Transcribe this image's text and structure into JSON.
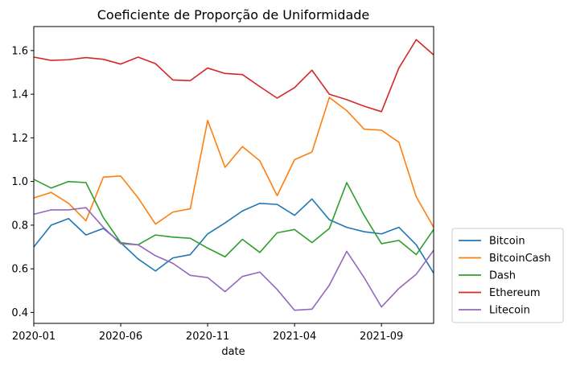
{
  "chart_data": {
    "type": "line",
    "title": "Coeficiente de Proporção de Uniformidade",
    "xlabel": "date",
    "ylabel": "",
    "x": [
      "2020-01",
      "2020-02",
      "2020-03",
      "2020-04",
      "2020-05",
      "2020-06",
      "2020-07",
      "2020-08",
      "2020-09",
      "2020-10",
      "2020-11",
      "2020-12",
      "2021-01",
      "2021-02",
      "2021-03",
      "2021-04",
      "2021-05",
      "2021-06",
      "2021-07",
      "2021-08",
      "2021-09",
      "2021-10",
      "2021-11",
      "2021-12"
    ],
    "x_ticks": [
      "2020-01",
      "2020-06",
      "2020-11",
      "2021-04",
      "2021-09"
    ],
    "y_ticks": [
      0.4,
      0.6,
      0.8,
      1.0,
      1.2,
      1.4,
      1.6
    ],
    "y_tick_labels": [
      "0.4",
      "0.6",
      "0.8",
      "1.0",
      "1.2",
      "1.4",
      "1.6"
    ],
    "ylim": [
      0.35,
      1.71
    ],
    "grid": false,
    "legend_position": "outside-bottom-right",
    "series": [
      {
        "name": "Bitcoin",
        "color": "#1f77b4",
        "values": [
          0.7,
          0.8,
          0.83,
          0.755,
          0.785,
          0.72,
          0.645,
          0.59,
          0.65,
          0.665,
          0.76,
          0.81,
          0.865,
          0.9,
          0.895,
          0.845,
          0.92,
          0.825,
          0.79,
          0.77,
          0.76,
          0.79,
          0.71,
          0.58
        ]
      },
      {
        "name": "BitcoinCash",
        "color": "#ff7f0e",
        "values": [
          0.925,
          0.95,
          0.9,
          0.82,
          1.02,
          1.025,
          0.925,
          0.805,
          0.86,
          0.875,
          1.28,
          1.065,
          1.16,
          1.095,
          0.935,
          1.1,
          1.135,
          1.385,
          1.325,
          1.24,
          1.235,
          1.18,
          0.93,
          0.79
        ]
      },
      {
        "name": "Dash",
        "color": "#2ca02c",
        "values": [
          1.01,
          0.97,
          1.0,
          0.995,
          0.835,
          0.72,
          0.71,
          0.755,
          0.745,
          0.74,
          0.695,
          0.655,
          0.735,
          0.675,
          0.765,
          0.78,
          0.72,
          0.785,
          0.995,
          0.845,
          0.715,
          0.73,
          0.665,
          0.78
        ]
      },
      {
        "name": "Ethereum",
        "color": "#d62728",
        "values": [
          1.57,
          1.555,
          1.558,
          1.568,
          1.56,
          1.538,
          1.57,
          1.54,
          1.465,
          1.462,
          1.52,
          1.495,
          1.49,
          1.435,
          1.382,
          1.43,
          1.51,
          1.4,
          1.375,
          1.345,
          1.32,
          1.52,
          1.65,
          1.58
        ]
      },
      {
        "name": "Litecoin",
        "color": "#9467bd",
        "values": [
          0.85,
          0.87,
          0.87,
          0.88,
          0.79,
          0.715,
          0.71,
          0.66,
          0.625,
          0.57,
          0.56,
          0.495,
          0.565,
          0.585,
          0.505,
          0.41,
          0.415,
          0.525,
          0.68,
          0.56,
          0.425,
          0.51,
          0.575,
          0.685
        ]
      }
    ]
  }
}
